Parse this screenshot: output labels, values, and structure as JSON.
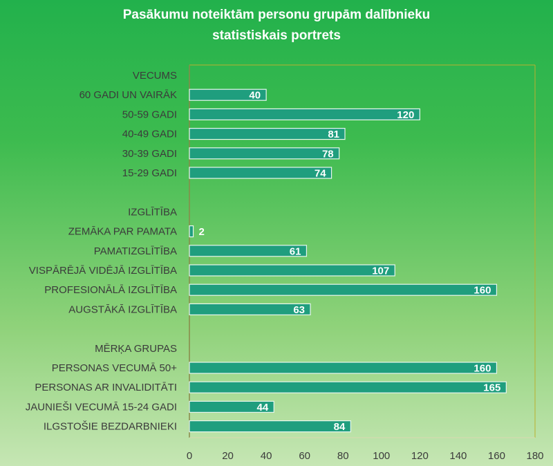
{
  "chart_data": {
    "type": "bar",
    "orientation": "horizontal",
    "title_lines": [
      "Pasākumu noteiktām personu grupām dalībnieku",
      "statistiskais portrets"
    ],
    "xlabel": "",
    "ylabel": "",
    "xlim": [
      0,
      180
    ],
    "x_ticks": [
      0,
      20,
      40,
      60,
      80,
      100,
      120,
      140,
      160,
      180
    ],
    "grid": false,
    "legend": "none",
    "rows": [
      {
        "label": "VECUMS",
        "value": null,
        "header": true
      },
      {
        "label": "60 GADI UN VAIRĀK",
        "value": 40
      },
      {
        "label": "50-59 GADI",
        "value": 120
      },
      {
        "label": "40-49 GADI",
        "value": 81
      },
      {
        "label": "30-39 GADI",
        "value": 78
      },
      {
        "label": "15-29 GADI",
        "value": 74
      },
      {
        "label": "",
        "value": null,
        "spacer": true
      },
      {
        "label": "IZGLĪTĪBA",
        "value": null,
        "header": true
      },
      {
        "label": "ZEMĀKA PAR PAMATA",
        "value": 2
      },
      {
        "label": "PAMATIZGLĪTĪBA",
        "value": 61
      },
      {
        "label": "VISPĀRĒJĀ VIDĒJĀ IZGLĪTĪBA",
        "value": 107
      },
      {
        "label": "PROFESIONĀLĀ IZGLĪTĪBA",
        "value": 160
      },
      {
        "label": "AUGSTĀKĀ IZGLĪTĪBA",
        "value": 63
      },
      {
        "label": "",
        "value": null,
        "spacer": true
      },
      {
        "label": "MĒRĶA GRUPAS",
        "value": null,
        "header": true
      },
      {
        "label": "PERSONAS VECUMĀ 50+",
        "value": 160
      },
      {
        "label": "PERSONAS AR INVALIDITĀTI",
        "value": 165
      },
      {
        "label": "JAUNIEŠI  VECUMĀ 15-24 GADI",
        "value": 44
      },
      {
        "label": "ILGSTOŠIE BEZDARBNIEKI",
        "value": 84
      }
    ],
    "colors": {
      "bar_fill": "#1f9e7e",
      "bar_stroke": "#e8f6ee",
      "label_text": "#3b3b3b",
      "value_text": "#ffffff",
      "axis_line": "#8a8a4a",
      "plot_border": "#b9b02e",
      "title_text": "#ffffff"
    }
  }
}
